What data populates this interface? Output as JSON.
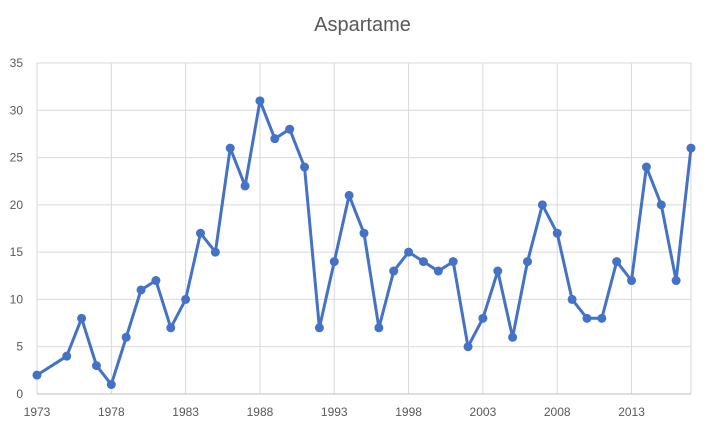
{
  "chart_data": {
    "type": "line",
    "title": "Aspartame",
    "xlabel": "",
    "ylabel": "",
    "x": [
      1973,
      1975,
      1976,
      1977,
      1978,
      1979,
      1980,
      1981,
      1982,
      1983,
      1984,
      1985,
      1986,
      1987,
      1988,
      1989,
      1990,
      1991,
      1992,
      1993,
      1994,
      1995,
      1996,
      1997,
      1998,
      1999,
      2000,
      2001,
      2002,
      2003,
      2004,
      2005,
      2006,
      2007,
      2008,
      2009,
      2010,
      2011,
      2012,
      2013,
      2014,
      2015,
      2016,
      2017
    ],
    "series": [
      {
        "values": [
          2,
          4,
          8,
          3,
          1,
          6,
          11,
          12,
          7,
          10,
          17,
          15,
          26,
          22,
          31,
          27,
          28,
          24,
          7,
          14,
          21,
          17,
          7,
          13,
          15,
          14,
          13,
          14,
          5,
          8,
          13,
          6,
          14,
          20,
          17,
          10,
          8,
          8,
          14,
          12,
          24,
          20,
          12,
          26
        ],
        "color": "#4472c4"
      }
    ],
    "xlim": [
      1973,
      2017
    ],
    "ylim": [
      0,
      35
    ],
    "x_ticks": [
      "1973",
      "1978",
      "1983",
      "1988",
      "1993",
      "1998",
      "2003",
      "2008",
      "2013"
    ],
    "y_ticks": [
      "0",
      "5",
      "10",
      "15",
      "20",
      "25",
      "30",
      "35"
    ],
    "grid": true,
    "legend": "none"
  }
}
